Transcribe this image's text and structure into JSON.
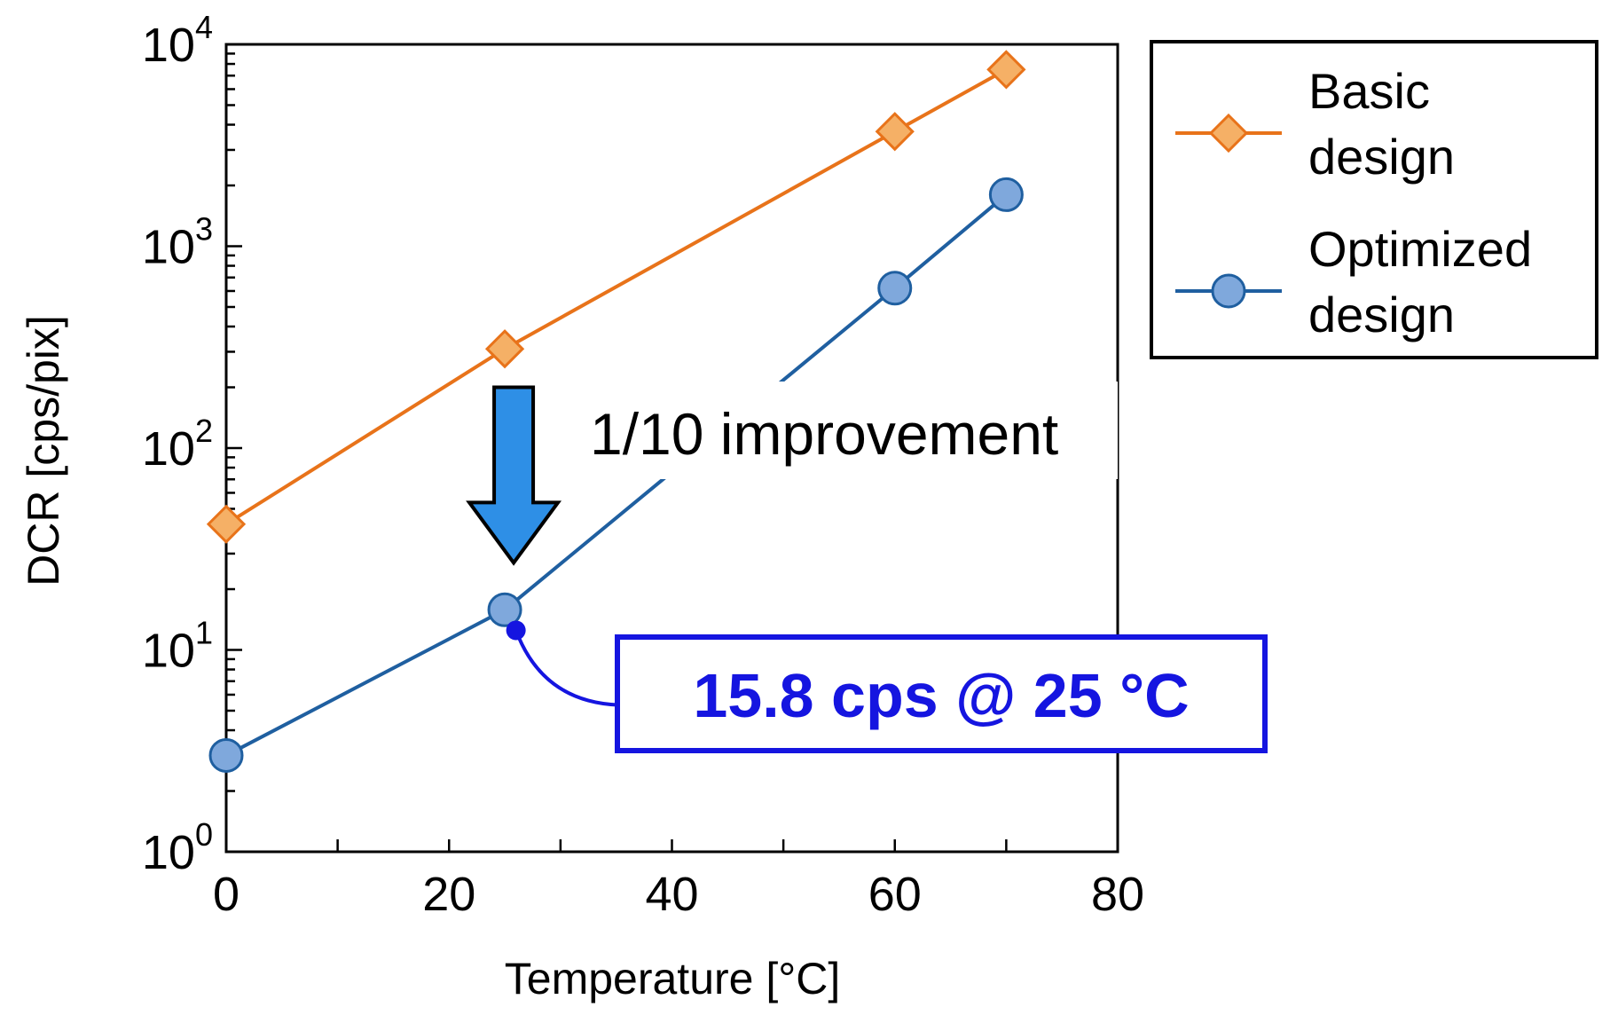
{
  "chart_data": {
    "type": "line",
    "title": "",
    "xlabel": "Temperature [°C]",
    "ylabel": "DCR [cps/pix]",
    "xlim": [
      0,
      80
    ],
    "ylim": [
      1,
      10000
    ],
    "yscale": "log",
    "x_ticks": [
      0,
      20,
      40,
      60,
      80
    ],
    "y_ticks": [
      {
        "base": "10",
        "exp": "0",
        "value": 1
      },
      {
        "base": "10",
        "exp": "1",
        "value": 10
      },
      {
        "base": "10",
        "exp": "2",
        "value": 100
      },
      {
        "base": "10",
        "exp": "3",
        "value": 1000
      },
      {
        "base": "10",
        "exp": "4",
        "value": 10000
      }
    ],
    "grid": false,
    "legend_position": "outside-right-top",
    "series": [
      {
        "name": "Basic design",
        "legend_lines": [
          "Basic",
          "design"
        ],
        "marker": "diamond",
        "color": "#E8731A",
        "fill": "#F5B066",
        "x": [
          0,
          25,
          60,
          70
        ],
        "y": [
          42,
          310,
          3700,
          7500
        ]
      },
      {
        "name": "Optimized design",
        "legend_lines": [
          "Optimized",
          "design"
        ],
        "marker": "circle",
        "color": "#1F5FA0",
        "fill": "#7FA8DC",
        "x": [
          0,
          25,
          60,
          70
        ],
        "y": [
          3,
          15.8,
          620,
          1800
        ]
      }
    ],
    "annotations": {
      "improvement": {
        "text": "1/10 improvement",
        "arrow_x": 25,
        "arrow_from_y": 200,
        "arrow_to_y": 27,
        "arrow_fill": "#2E8FE6"
      },
      "callout": {
        "text": "15.8 cps @ 25 °C",
        "point_x": 26,
        "point_y": 12.5,
        "color": "#1515E0"
      }
    }
  }
}
